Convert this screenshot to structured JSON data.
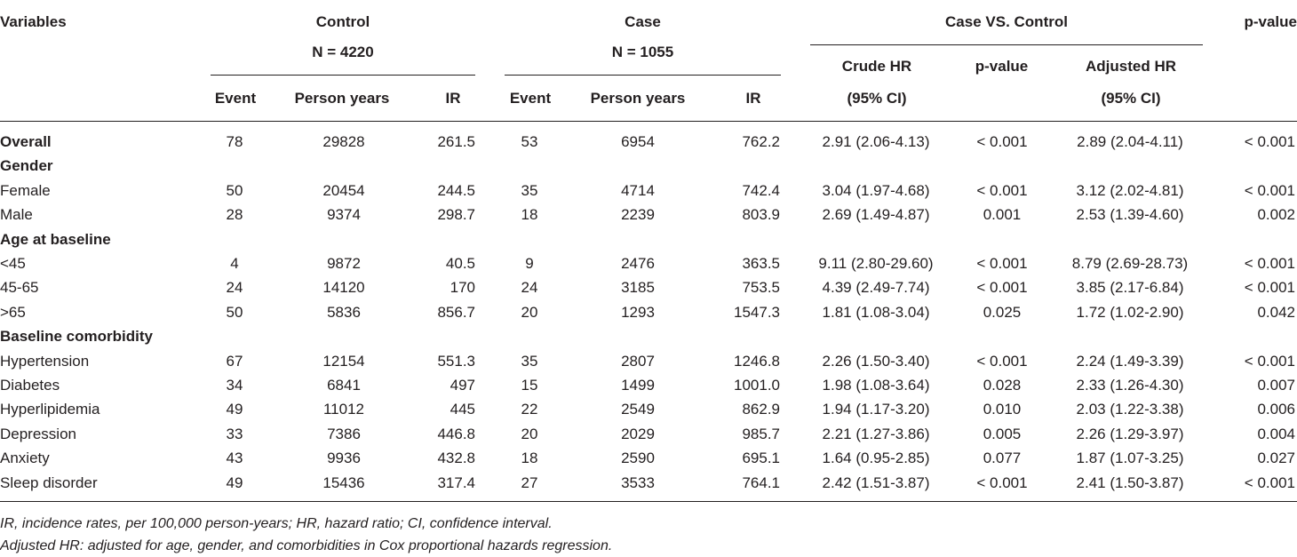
{
  "header": {
    "variables": "Variables",
    "control": "Control",
    "control_n": "N = 4220",
    "case": "Case",
    "case_n": "N = 1055",
    "comparison": "Case VS. Control",
    "pvalue_outer": "p-value",
    "event": "Event",
    "person_years": "Person years",
    "ir": "IR",
    "crude_hr_1": "Crude HR",
    "crude_hr_2": "(95% CI)",
    "pvalue_inner": "p-value",
    "adj_hr_1": "Adjusted HR",
    "adj_hr_2": "(95% CI)"
  },
  "rows": [
    {
      "label": "Overall",
      "bold": true,
      "values": [
        "78",
        "29828",
        "261.5",
        "53",
        "6954",
        "762.2",
        "2.91 (2.06-4.13)",
        "< 0.001",
        "2.89 (2.04-4.11)",
        "< 0.001"
      ]
    },
    {
      "label": "Gender",
      "bold": true,
      "values": [
        "",
        "",
        "",
        "",
        "",
        "",
        "",
        "",
        "",
        ""
      ]
    },
    {
      "label": "Female",
      "bold": false,
      "values": [
        "50",
        "20454",
        "244.5",
        "35",
        "4714",
        "742.4",
        "3.04 (1.97-4.68)",
        "< 0.001",
        "3.12 (2.02-4.81)",
        "< 0.001"
      ]
    },
    {
      "label": "Male",
      "bold": false,
      "values": [
        "28",
        "9374",
        "298.7",
        "18",
        "2239",
        "803.9",
        "2.69 (1.49-4.87)",
        "0.001",
        "2.53 (1.39-4.60)",
        "0.002"
      ]
    },
    {
      "label": "Age at baseline",
      "bold": true,
      "values": [
        "",
        "",
        "",
        "",
        "",
        "",
        "",
        "",
        "",
        ""
      ]
    },
    {
      "label": "<45",
      "bold": false,
      "values": [
        "4",
        "9872",
        "40.5",
        "9",
        "2476",
        "363.5",
        "9.11 (2.80-29.60)",
        "< 0.001",
        "8.79 (2.69-28.73)",
        "< 0.001"
      ]
    },
    {
      "label": "45-65",
      "bold": false,
      "values": [
        "24",
        "14120",
        "170",
        "24",
        "3185",
        "753.5",
        "4.39 (2.49-7.74)",
        "< 0.001",
        "3.85 (2.17-6.84)",
        "< 0.001"
      ]
    },
    {
      "label": ">65",
      "bold": false,
      "values": [
        "50",
        "5836",
        "856.7",
        "20",
        "1293",
        "1547.3",
        "1.81 (1.08-3.04)",
        "0.025",
        "1.72 (1.02-2.90)",
        "0.042"
      ]
    },
    {
      "label": "Baseline comorbidity",
      "bold": true,
      "values": [
        "",
        "",
        "",
        "",
        "",
        "",
        "",
        "",
        "",
        ""
      ]
    },
    {
      "label": "Hypertension",
      "bold": false,
      "values": [
        "67",
        "12154",
        "551.3",
        "35",
        "2807",
        "1246.8",
        "2.26 (1.50-3.40)",
        "< 0.001",
        "2.24 (1.49-3.39)",
        "< 0.001"
      ]
    },
    {
      "label": "Diabetes",
      "bold": false,
      "values": [
        "34",
        "6841",
        "497",
        "15",
        "1499",
        "1001.0",
        "1.98 (1.08-3.64)",
        "0.028",
        "2.33 (1.26-4.30)",
        "0.007"
      ]
    },
    {
      "label": "Hyperlipidemia",
      "bold": false,
      "values": [
        "49",
        "11012",
        "445",
        "22",
        "2549",
        "862.9",
        "1.94 (1.17-3.20)",
        "0.010",
        "2.03 (1.22-3.38)",
        "0.006"
      ]
    },
    {
      "label": "Depression",
      "bold": false,
      "values": [
        "33",
        "7386",
        "446.8",
        "20",
        "2029",
        "985.7",
        "2.21 (1.27-3.86)",
        "0.005",
        "2.26 (1.29-3.97)",
        "0.004"
      ]
    },
    {
      "label": "Anxiety",
      "bold": false,
      "values": [
        "43",
        "9936",
        "432.8",
        "18",
        "2590",
        "695.1",
        "1.64 (0.95-2.85)",
        "0.077",
        "1.87 (1.07-3.25)",
        "0.027"
      ]
    },
    {
      "label": "Sleep disorder",
      "bold": false,
      "values": [
        "49",
        "15436",
        "317.4",
        "27",
        "3533",
        "764.1",
        "2.42 (1.51-3.87)",
        "< 0.001",
        "2.41 (1.50-3.87)",
        "< 0.001"
      ]
    }
  ],
  "footnotes": [
    "IR, incidence rates, per 100,000 person-years; HR, hazard ratio; CI, confidence interval.",
    "Adjusted HR: adjusted for age, gender, and comorbidities in Cox proportional hazards regression."
  ]
}
